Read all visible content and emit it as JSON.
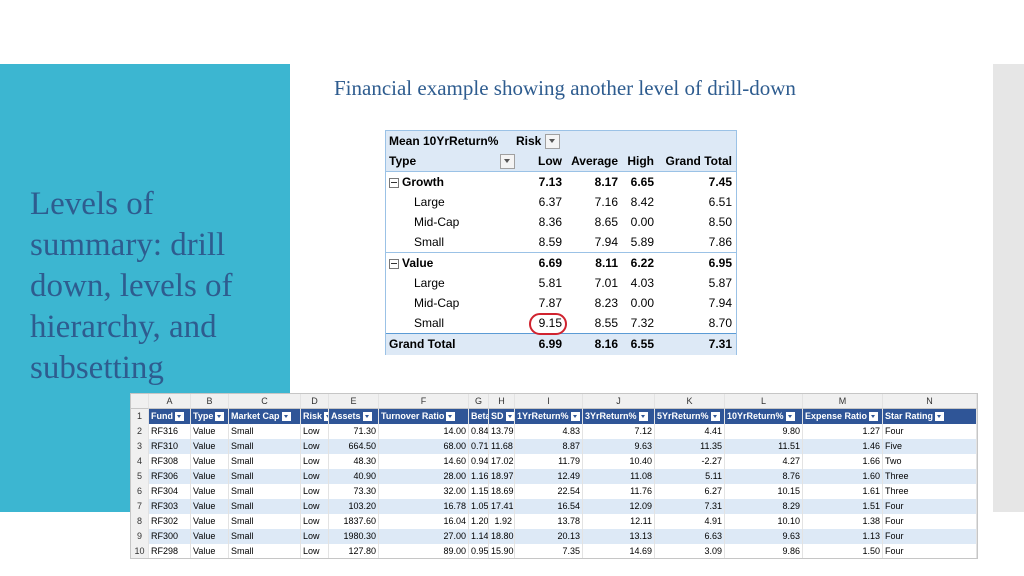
{
  "slide": {
    "title_lines": [
      "Levels of",
      "summary: drill",
      "down, levels of",
      "hierarchy, and",
      "subsetting"
    ],
    "subtitle": "Financial example showing another level of drill-down"
  },
  "pivot": {
    "corner_label": "Mean 10YrReturn%",
    "col_field": "Risk",
    "row_field": "Type",
    "columns": [
      "Low",
      "Average",
      "High",
      "Grand Total"
    ],
    "rows": [
      {
        "label": "Growth",
        "kind": "group",
        "values": [
          "7.13",
          "8.17",
          "6.65",
          "7.45"
        ]
      },
      {
        "label": "Large",
        "kind": "item",
        "values": [
          "6.37",
          "7.16",
          "8.42",
          "6.51"
        ]
      },
      {
        "label": "Mid-Cap",
        "kind": "item",
        "values": [
          "8.36",
          "8.65",
          "0.00",
          "8.50"
        ]
      },
      {
        "label": "Small",
        "kind": "item",
        "values": [
          "8.59",
          "7.94",
          "5.89",
          "7.86"
        ]
      },
      {
        "label": "Value",
        "kind": "group",
        "values": [
          "6.69",
          "8.11",
          "6.22",
          "6.95"
        ]
      },
      {
        "label": "Large",
        "kind": "item",
        "values": [
          "5.81",
          "7.01",
          "4.03",
          "5.87"
        ]
      },
      {
        "label": "Mid-Cap",
        "kind": "item",
        "values": [
          "7.87",
          "8.23",
          "0.00",
          "7.94"
        ]
      },
      {
        "label": "Small",
        "kind": "item",
        "values": [
          "9.15",
          "8.55",
          "7.32",
          "8.70"
        ]
      },
      {
        "label": "Grand Total",
        "kind": "total",
        "values": [
          "6.99",
          "8.16",
          "6.55",
          "7.31"
        ]
      }
    ],
    "highlighted_value": "9.15"
  },
  "sheet": {
    "column_letters": [
      "A",
      "B",
      "C",
      "D",
      "E",
      "F",
      "G",
      "H",
      "I",
      "J",
      "K",
      "L",
      "M",
      "N"
    ],
    "headers": [
      "Fund",
      "Type",
      "Market Cap",
      "Risk",
      "Assets",
      "Turnover Ratio",
      "Beta",
      "SD",
      "1YrReturn%",
      "3YrReturn%",
      "5YrReturn%",
      "10YrReturn%",
      "Expense Ratio",
      "Star Rating"
    ],
    "rows": [
      {
        "n": "2",
        "cells": [
          "RF316",
          "Value",
          "Small",
          "Low",
          "71.30",
          "14.00",
          "0.84",
          "13.79",
          "4.83",
          "7.12",
          "4.41",
          "9.80",
          "1.27",
          "Four"
        ]
      },
      {
        "n": "3",
        "cells": [
          "RF310",
          "Value",
          "Small",
          "Low",
          "664.50",
          "68.00",
          "0.71",
          "11.68",
          "8.87",
          "9.63",
          "11.35",
          "11.51",
          "1.46",
          "Five"
        ]
      },
      {
        "n": "4",
        "cells": [
          "RF308",
          "Value",
          "Small",
          "Low",
          "48.30",
          "14.60",
          "0.94",
          "17.02",
          "11.79",
          "10.40",
          "-2.27",
          "4.27",
          "1.66",
          "Two"
        ]
      },
      {
        "n": "5",
        "cells": [
          "RF306",
          "Value",
          "Small",
          "Low",
          "40.90",
          "28.00",
          "1.16",
          "18.97",
          "12.49",
          "11.08",
          "5.11",
          "8.76",
          "1.60",
          "Three"
        ]
      },
      {
        "n": "6",
        "cells": [
          "RF304",
          "Value",
          "Small",
          "Low",
          "73.30",
          "32.00",
          "1.15",
          "18.69",
          "22.54",
          "11.76",
          "6.27",
          "10.15",
          "1.61",
          "Three"
        ]
      },
      {
        "n": "7",
        "cells": [
          "RF303",
          "Value",
          "Small",
          "Low",
          "103.20",
          "16.78",
          "1.05",
          "17.41",
          "16.54",
          "12.09",
          "7.31",
          "8.29",
          "1.51",
          "Four"
        ]
      },
      {
        "n": "8",
        "cells": [
          "RF302",
          "Value",
          "Small",
          "Low",
          "1837.60",
          "16.04",
          "1.20",
          "1.92",
          "13.78",
          "12.11",
          "4.91",
          "10.10",
          "1.38",
          "Four"
        ]
      },
      {
        "n": "9",
        "cells": [
          "RF300",
          "Value",
          "Small",
          "Low",
          "1980.30",
          "27.00",
          "1.14",
          "18.80",
          "20.13",
          "13.13",
          "6.63",
          "9.63",
          "1.13",
          "Four"
        ]
      },
      {
        "n": "10",
        "cells": [
          "RF298",
          "Value",
          "Small",
          "Low",
          "127.80",
          "89.00",
          "0.95",
          "15.90",
          "7.35",
          "14.69",
          "3.09",
          "9.86",
          "1.50",
          "Four"
        ]
      }
    ]
  }
}
